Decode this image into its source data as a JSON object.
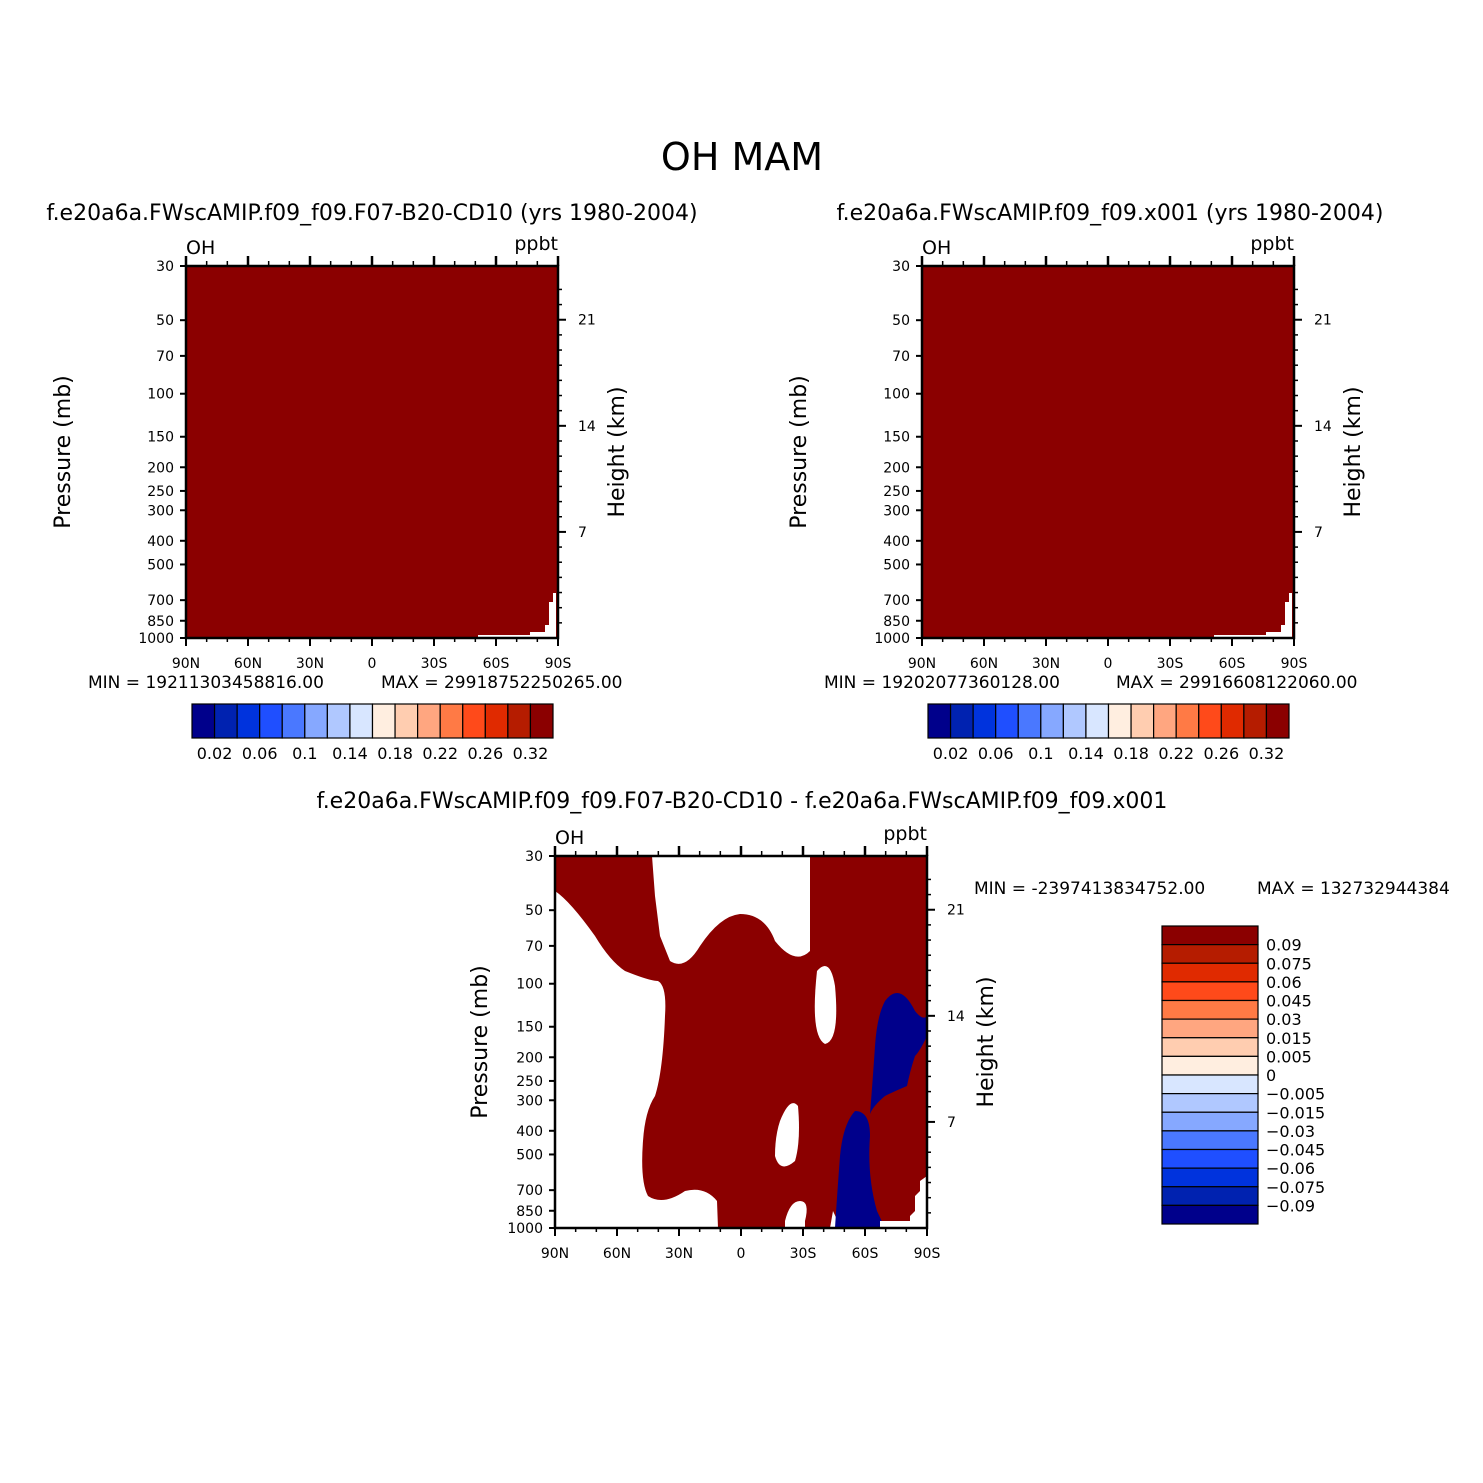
{
  "figure": {
    "title": "OH  MAM"
  },
  "colors": {
    "dark_red": "#8b0000",
    "dark_blue": "#00008b",
    "abs_palette": [
      "#00008b",
      "#0022b0",
      "#0033dd",
      "#1f4fff",
      "#4a78ff",
      "#86a8ff",
      "#b0c8ff",
      "#d8e6ff",
      "#ffeee0",
      "#ffcdb0",
      "#ffa680",
      "#ff7a45",
      "#ff4a1a",
      "#e02a00",
      "#b51c00",
      "#8b0000"
    ],
    "diff_palette": [
      "#8b0000",
      "#b51c00",
      "#e02a00",
      "#ff4a1a",
      "#ff7a45",
      "#ffa680",
      "#ffcdb0",
      "#ffeee0",
      "#d8e6ff",
      "#b0c8ff",
      "#86a8ff",
      "#4a78ff",
      "#1f4fff",
      "#0033dd",
      "#0022b0",
      "#00008b"
    ]
  },
  "chart_data": [
    {
      "type": "heatmap",
      "title": "f.e20a6a.FWscAMIP.f09_f09.F07-B20-CD10 (yrs 1980-2004)",
      "variable_label": "OH",
      "units_label": "ppbt",
      "ylabel": "Pressure (mb)",
      "ylabel_right": "Height (km)",
      "x_ticks": [
        "90N",
        "60N",
        "30N",
        "0",
        "30S",
        "60S",
        "90S"
      ],
      "y_ticks": [
        "30",
        "50",
        "70",
        "100",
        "150",
        "200",
        "250",
        "300",
        "400",
        "500",
        "700",
        "850",
        "1000"
      ],
      "y_right_ticks": [
        "21",
        "14",
        "7"
      ],
      "y_scale": "log",
      "min_label": "MIN = 19211303458816.00",
      "max_label": "MAX = 29918752250265.00",
      "colorbar_labels": [
        "0.02",
        "0.06",
        "0.1",
        "0.14",
        "0.18",
        "0.22",
        "0.26",
        "0.32"
      ],
      "field": "uniformly above top contour level (0.32)"
    },
    {
      "type": "heatmap",
      "title": "f.e20a6a.FWscAMIP.f09_f09.x001 (yrs 1980-2004)",
      "variable_label": "OH",
      "units_label": "ppbt",
      "ylabel": "Pressure (mb)",
      "ylabel_right": "Height (km)",
      "x_ticks": [
        "90N",
        "60N",
        "30N",
        "0",
        "30S",
        "60S",
        "90S"
      ],
      "y_ticks": [
        "30",
        "50",
        "70",
        "100",
        "150",
        "200",
        "250",
        "300",
        "400",
        "500",
        "700",
        "850",
        "1000"
      ],
      "y_right_ticks": [
        "21",
        "14",
        "7"
      ],
      "y_scale": "log",
      "min_label": "MIN = 19202077360128.00",
      "max_label": "MAX = 29916608122060.00",
      "colorbar_labels": [
        "0.02",
        "0.06",
        "0.1",
        "0.14",
        "0.18",
        "0.22",
        "0.26",
        "0.32"
      ],
      "field": "uniformly above top contour level (0.32)"
    },
    {
      "type": "heatmap",
      "title": "f.e20a6a.FWscAMIP.f09_f09.F07-B20-CD10 - f.e20a6a.FWscAMIP.f09_f09.x001",
      "variable_label": "OH",
      "units_label": "ppbt",
      "ylabel": "Pressure (mb)",
      "ylabel_right": "Height (km)",
      "x_ticks": [
        "90N",
        "60N",
        "30N",
        "0",
        "30S",
        "60S",
        "90S"
      ],
      "y_ticks": [
        "30",
        "50",
        "70",
        "100",
        "150",
        "200",
        "250",
        "300",
        "400",
        "500",
        "700",
        "850",
        "1000"
      ],
      "y_right_ticks": [
        "21",
        "14",
        "7"
      ],
      "y_scale": "log",
      "min_label": "MIN = -2397413834752.00",
      "max_label": "MAX = 132732944384",
      "colorbar_labels": [
        "0.09",
        "0.075",
        "0.06",
        "0.045",
        "0.03",
        "0.015",
        "0.005",
        "0",
        "-0.005",
        "-0.015",
        "-0.03",
        "-0.045",
        "-0.06",
        "-0.075",
        "-0.09"
      ],
      "field": "regions of difference above 0.09 (dark red), below -0.09 (dark blue), and near zero (white)"
    }
  ]
}
